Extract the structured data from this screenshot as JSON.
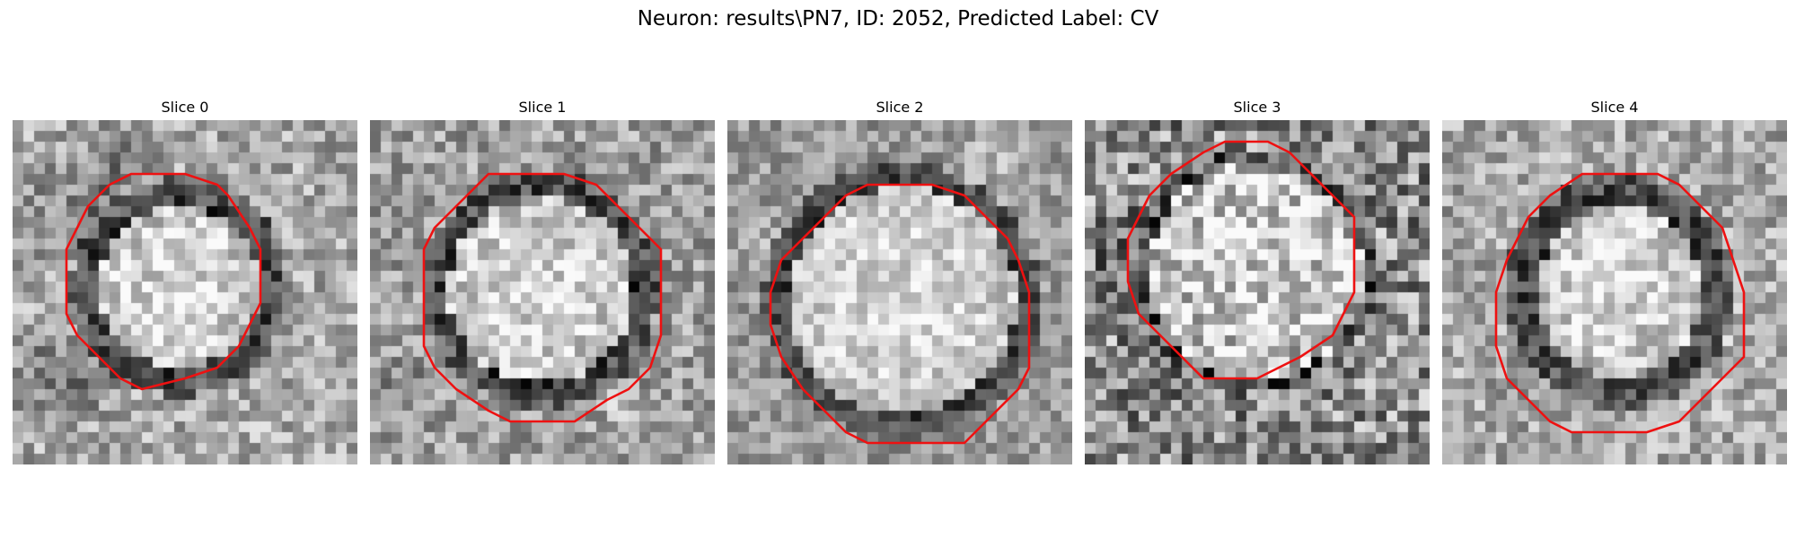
{
  "figure": {
    "suptitle": "Neuron: results\\PN7, ID: 2052, Predicted Label: CV",
    "contour_color": "#ee1111"
  },
  "panels": [
    {
      "title": "Slice 0"
    },
    {
      "title": "Slice 1"
    },
    {
      "title": "Slice 2"
    },
    {
      "title": "Slice 3"
    },
    {
      "title": "Slice 4"
    }
  ]
}
